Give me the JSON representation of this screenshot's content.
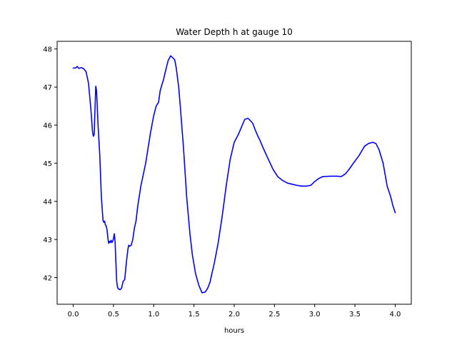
{
  "chart_data": {
    "type": "line",
    "title": "Water Depth h at gauge 10",
    "xlabel": "hours",
    "ylabel": "",
    "xlim": [
      -0.2,
      4.2
    ],
    "ylim": [
      41.3,
      48.2
    ],
    "xticks": [
      0.0,
      0.5,
      1.0,
      1.5,
      2.0,
      2.5,
      3.0,
      3.5,
      4.0
    ],
    "xtick_labels": [
      "0.0",
      "0.5",
      "1.0",
      "1.5",
      "2.0",
      "2.5",
      "3.0",
      "3.5",
      "4.0"
    ],
    "yticks": [
      42,
      43,
      44,
      45,
      46,
      47,
      48
    ],
    "ytick_labels": [
      "42",
      "43",
      "44",
      "45",
      "46",
      "47",
      "48"
    ],
    "grid": false,
    "series": [
      {
        "color": "#0000ff",
        "x": [
          0.0,
          0.03,
          0.05,
          0.07,
          0.1,
          0.13,
          0.16,
          0.19,
          0.22,
          0.24,
          0.25,
          0.26,
          0.27,
          0.28,
          0.29,
          0.3,
          0.31,
          0.33,
          0.35,
          0.37,
          0.38,
          0.39,
          0.4,
          0.41,
          0.42,
          0.43,
          0.44,
          0.45,
          0.46,
          0.47,
          0.48,
          0.49,
          0.5,
          0.51,
          0.52,
          0.53,
          0.54,
          0.55,
          0.56,
          0.57,
          0.58,
          0.6,
          0.62,
          0.64,
          0.66,
          0.68,
          0.69,
          0.7,
          0.72,
          0.74,
          0.76,
          0.78,
          0.8,
          0.84,
          0.9,
          0.96,
          1.0,
          1.03,
          1.06,
          1.08,
          1.1,
          1.12,
          1.15,
          1.18,
          1.21,
          1.24,
          1.26,
          1.28,
          1.31,
          1.33,
          1.37,
          1.41,
          1.45,
          1.48,
          1.52,
          1.56,
          1.6,
          1.64,
          1.67,
          1.7,
          1.72,
          1.75,
          1.8,
          1.85,
          1.9,
          1.95,
          2.0,
          2.05,
          2.1,
          2.13,
          2.17,
          2.2,
          2.23,
          2.26,
          2.29,
          2.32,
          2.36,
          2.42,
          2.48,
          2.54,
          2.6,
          2.66,
          2.72,
          2.78,
          2.84,
          2.9,
          2.95,
          3.0,
          3.05,
          3.1,
          3.2,
          3.28,
          3.33,
          3.38,
          3.42,
          3.48,
          3.55,
          3.62,
          3.67,
          3.72,
          3.76,
          3.8,
          3.85,
          3.9,
          3.94,
          3.97,
          4.0
        ],
        "y": [
          47.5,
          47.5,
          47.54,
          47.49,
          47.51,
          47.48,
          47.4,
          47.1,
          46.4,
          45.82,
          45.71,
          45.75,
          46.4,
          47.02,
          46.9,
          46.4,
          45.95,
          45.2,
          44.1,
          43.5,
          43.45,
          43.48,
          43.38,
          43.35,
          43.25,
          43.05,
          42.9,
          42.95,
          42.92,
          42.98,
          42.92,
          42.95,
          43.02,
          43.15,
          42.95,
          42.4,
          41.9,
          41.75,
          41.7,
          41.7,
          41.68,
          41.72,
          41.9,
          41.95,
          42.4,
          42.75,
          42.85,
          42.82,
          42.85,
          43.0,
          43.3,
          43.48,
          43.85,
          44.4,
          45.0,
          45.8,
          46.25,
          46.5,
          46.6,
          46.9,
          47.05,
          47.18,
          47.45,
          47.7,
          47.82,
          47.76,
          47.72,
          47.5,
          47.0,
          46.5,
          45.4,
          44.1,
          43.15,
          42.6,
          42.1,
          41.8,
          41.6,
          41.62,
          41.72,
          41.88,
          42.08,
          42.35,
          42.9,
          43.6,
          44.4,
          45.1,
          45.55,
          45.75,
          46.0,
          46.15,
          46.18,
          46.12,
          46.05,
          45.88,
          45.73,
          45.6,
          45.4,
          45.12,
          44.85,
          44.65,
          44.55,
          44.48,
          44.45,
          44.42,
          44.4,
          44.4,
          44.42,
          44.52,
          44.6,
          44.65,
          44.66,
          44.66,
          44.65,
          44.72,
          44.82,
          45.0,
          45.2,
          45.45,
          45.52,
          45.55,
          45.52,
          45.35,
          45.0,
          44.4,
          44.15,
          43.9,
          43.7
        ]
      }
    ]
  }
}
